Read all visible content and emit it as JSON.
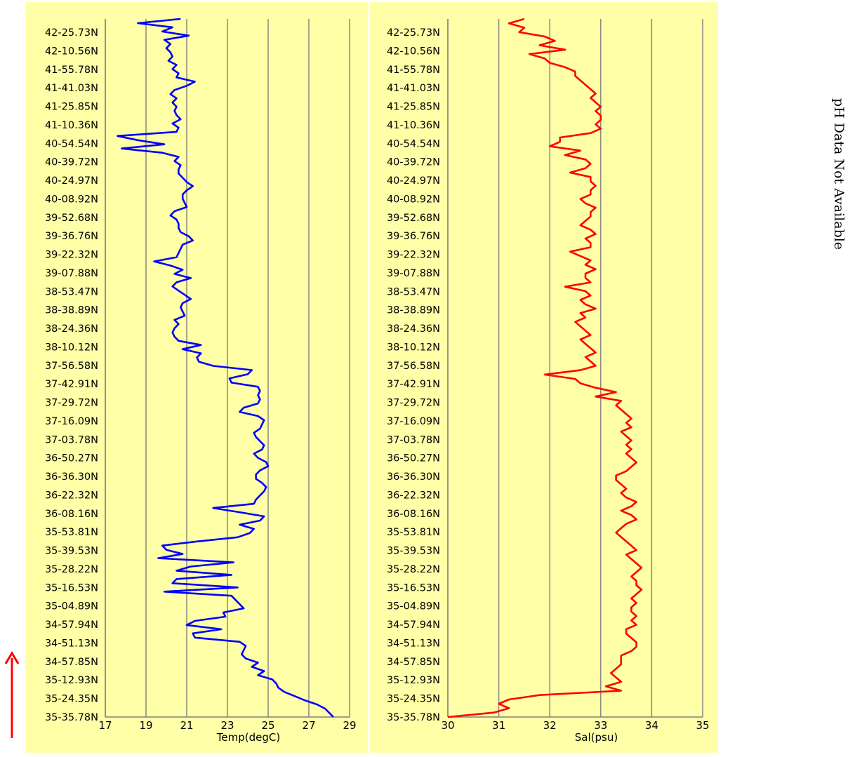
{
  "side_note": "pH Data Not Available",
  "colors": {
    "panel_background": "#ffffa8",
    "grid": "#808080",
    "arrow": "#ff0000"
  },
  "chart_data": [
    {
      "type": "line",
      "orientation": "vertical-profile",
      "title": "",
      "xlabel": "Temp(degC)",
      "xlim": [
        17,
        29
      ],
      "xticks": [
        17,
        19,
        21,
        23,
        25,
        27,
        29
      ],
      "grid": "vertical",
      "series": [
        {
          "color": "#0000ff",
          "values": [
            20.7,
            18.6,
            20.3,
            19.8,
            21.1,
            19.9,
            20.2,
            20.0,
            20.2,
            20.3,
            20.1,
            20.5,
            20.3,
            20.6,
            20.5,
            21.4,
            21.0,
            20.4,
            20.2,
            20.5,
            20.3,
            20.5,
            20.4,
            20.5,
            20.7,
            20.3,
            20.6,
            20.5,
            17.6,
            18.6,
            19.9,
            17.8,
            19.8,
            20.6,
            20.4,
            20.7,
            20.6,
            20.6,
            20.8,
            21.0,
            21.3,
            21.0,
            20.8,
            20.8,
            20.9,
            21.0,
            20.4,
            20.2,
            20.5,
            20.6,
            20.6,
            20.7,
            21.1,
            21.3,
            20.8,
            20.7,
            20.6,
            20.5,
            19.4,
            20.2,
            20.8,
            20.4,
            21.2,
            20.5,
            20.3,
            20.6,
            20.9,
            21.2,
            20.8,
            20.7,
            20.8,
            20.9,
            20.4,
            20.6,
            20.4,
            20.3,
            20.4,
            20.6,
            21.7,
            20.8,
            21.7,
            21.5,
            21.6,
            22.3,
            24.2,
            24.0,
            23.1,
            23.2,
            24.5,
            24.6,
            24.5,
            24.6,
            24.5,
            23.8,
            23.6,
            24.5,
            24.8,
            24.7,
            24.6,
            24.3,
            24.4,
            24.6,
            24.8,
            24.7,
            24.3,
            24.5,
            24.9,
            25.0,
            24.6,
            24.4,
            24.4,
            24.7,
            24.9,
            24.8,
            24.6,
            24.4,
            24.3,
            22.3,
            23.6,
            24.8,
            24.6,
            23.6,
            24.3,
            24.1,
            23.5,
            21.5,
            19.8,
            20.0,
            20.8,
            19.6,
            23.3,
            21.2,
            20.5,
            23.2,
            20.5,
            20.3,
            23.5,
            19.9,
            23.2,
            23.4,
            23.6,
            23.8,
            22.8,
            22.9,
            21.4,
            21.0,
            22.7,
            21.3,
            21.4,
            23.6,
            23.9,
            23.8,
            23.7,
            23.9,
            24.5,
            24.2,
            24.8,
            24.5,
            25.2,
            25.4,
            25.5,
            25.8,
            26.3,
            26.8,
            27.4,
            27.8,
            28.0,
            28.2
          ]
        }
      ],
      "ylabel": "",
      "y_ticks": [
        "42-25.73N",
        "42-10.56N",
        "41-55.78N",
        "41-41.03N",
        "41-25.85N",
        "41-10.36N",
        "40-54.54N",
        "40-39.72N",
        "40-24.97N",
        "40-08.92N",
        "39-52.68N",
        "39-36.76N",
        "39-22.32N",
        "39-07.88N",
        "38-53.47N",
        "38-38.89N",
        "38-24.36N",
        "38-10.12N",
        "37-56.58N",
        "37-42.91N",
        "37-29.72N",
        "37-16.09N",
        "37-03.78N",
        "36-50.27N",
        "36-36.30N",
        "36-22.32N",
        "36-08.16N",
        "35-53.81N",
        "35-39.53N",
        "35-28.22N",
        "35-16.53N",
        "35-04.89N",
        "34-57.94N",
        "34-51.13N",
        "34-57.85N",
        "35-12.93N",
        "35-24.35N",
        "35-35.78N"
      ]
    },
    {
      "type": "line",
      "orientation": "vertical-profile",
      "title": "",
      "xlabel": "Sal(psu)",
      "xlim": [
        30,
        35
      ],
      "xticks": [
        30,
        31,
        32,
        33,
        34,
        35
      ],
      "grid": "vertical",
      "series": [
        {
          "color": "#ff0000",
          "values": [
            31.5,
            31.2,
            31.5,
            31.4,
            31.9,
            32.1,
            31.8,
            32.3,
            31.6,
            31.9,
            32.0,
            32.3,
            32.5,
            32.5,
            32.6,
            32.7,
            32.8,
            32.9,
            32.8,
            32.9,
            33.0,
            32.9,
            33.0,
            33.0,
            32.9,
            33.0,
            32.8,
            32.2,
            32.2,
            32.0,
            32.6,
            32.3,
            32.7,
            32.8,
            32.7,
            32.4,
            32.8,
            32.8,
            32.9,
            32.8,
            32.8,
            32.6,
            32.7,
            32.9,
            32.8,
            32.8,
            32.7,
            32.6,
            32.8,
            32.9,
            32.7,
            32.8,
            32.8,
            32.4,
            32.6,
            32.8,
            32.7,
            32.9,
            32.7,
            32.7,
            32.8,
            32.3,
            32.7,
            32.8,
            32.6,
            32.7,
            32.9,
            32.6,
            32.7,
            32.5,
            32.6,
            32.7,
            32.8,
            32.6,
            32.7,
            32.8,
            32.9,
            32.7,
            32.8,
            32.9,
            32.6,
            31.9,
            32.5,
            32.6,
            32.9,
            33.3,
            32.9,
            33.4,
            33.3,
            33.4,
            33.5,
            33.6,
            33.5,
            33.6,
            33.4,
            33.5,
            33.6,
            33.5,
            33.6,
            33.5,
            33.6,
            33.7,
            33.6,
            33.5,
            33.3,
            33.3,
            33.4,
            33.5,
            33.4,
            33.5,
            33.7,
            33.6,
            33.4,
            33.6,
            33.7,
            33.5,
            33.4,
            33.3,
            33.4,
            33.5,
            33.6,
            33.7,
            33.5,
            33.6,
            33.7,
            33.8,
            33.7,
            33.6,
            33.7,
            33.7,
            33.8,
            33.7,
            33.6,
            33.7,
            33.6,
            33.6,
            33.7,
            33.6,
            33.7,
            33.5,
            33.5,
            33.6,
            33.7,
            33.7,
            33.6,
            33.4,
            33.4,
            33.4,
            33.3,
            33.2,
            33.3,
            33.4,
            33.1,
            33.4,
            31.8,
            31.2,
            31.0,
            31.2,
            30.9,
            30.0
          ]
        }
      ],
      "ylabel": "",
      "y_ticks": [
        "42-25.73N",
        "42-10.56N",
        "41-55.78N",
        "41-41.03N",
        "41-25.85N",
        "41-10.36N",
        "40-54.54N",
        "40-39.72N",
        "40-24.97N",
        "40-08.92N",
        "39-52.68N",
        "39-36.76N",
        "39-22.32N",
        "39-07.88N",
        "38-53.47N",
        "38-38.89N",
        "38-24.36N",
        "38-10.12N",
        "37-56.58N",
        "37-42.91N",
        "37-29.72N",
        "37-16.09N",
        "37-03.78N",
        "36-50.27N",
        "36-36.30N",
        "36-22.32N",
        "36-08.16N",
        "35-53.81N",
        "35-39.53N",
        "35-28.22N",
        "35-16.53N",
        "35-04.89N",
        "34-57.94N",
        "34-51.13N",
        "34-57.85N",
        "35-12.93N",
        "35-24.35N",
        "35-35.78N"
      ]
    }
  ]
}
